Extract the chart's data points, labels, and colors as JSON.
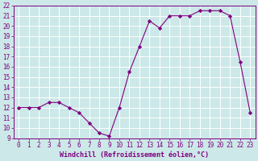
{
  "x": [
    0,
    1,
    2,
    3,
    4,
    5,
    6,
    7,
    8,
    9,
    10,
    11,
    12,
    13,
    14,
    15,
    16,
    17,
    18,
    19,
    20,
    21,
    22,
    23
  ],
  "y": [
    12,
    12,
    12,
    12.5,
    12.5,
    12,
    11.5,
    10.5,
    9.5,
    9.2,
    12,
    15.5,
    18,
    20.5,
    19.8,
    21,
    21,
    21,
    21.5,
    21.5,
    21.5,
    21,
    16.5,
    11.5
  ],
  "line_color": "#800080",
  "marker": "D",
  "marker_size": 2.2,
  "bg_color": "#cce8e8",
  "grid_color": "#ffffff",
  "xlabel": "Windchill (Refroidissement éolien,°C)",
  "xlim": [
    -0.5,
    23.5
  ],
  "ylim": [
    9,
    22
  ],
  "yticks": [
    9,
    10,
    11,
    12,
    13,
    14,
    15,
    16,
    17,
    18,
    19,
    20,
    21,
    22
  ],
  "xticks": [
    0,
    1,
    2,
    3,
    4,
    5,
    6,
    7,
    8,
    9,
    10,
    11,
    12,
    13,
    14,
    15,
    16,
    17,
    18,
    19,
    20,
    21,
    22,
    23
  ],
  "axis_color": "#800080",
  "tick_label_color": "#800080",
  "label_color": "#800080",
  "tick_fontsize": 5.5,
  "xlabel_fontsize": 6.0,
  "linewidth": 0.8
}
